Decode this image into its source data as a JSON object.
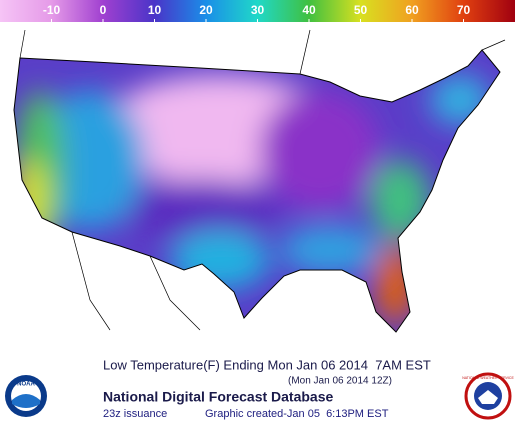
{
  "colorbar": {
    "lim": [
      -20,
      80
    ],
    "ticks": [
      -10,
      0,
      10,
      20,
      30,
      40,
      50,
      60,
      70
    ]
  },
  "footer": {
    "title": "Low Temperature(F) Ending Mon Jan 06 2014  7AM EST",
    "valid_time": "(Mon Jan 06 2014 12Z)",
    "product": "National Digital Forecast Database",
    "issuance": "23z issuance",
    "created": "Graphic created-Jan 05  6:13PM EST"
  },
  "logos": {
    "left": "NOAA",
    "right": "NATIONAL WEATHER SERVICE"
  }
}
